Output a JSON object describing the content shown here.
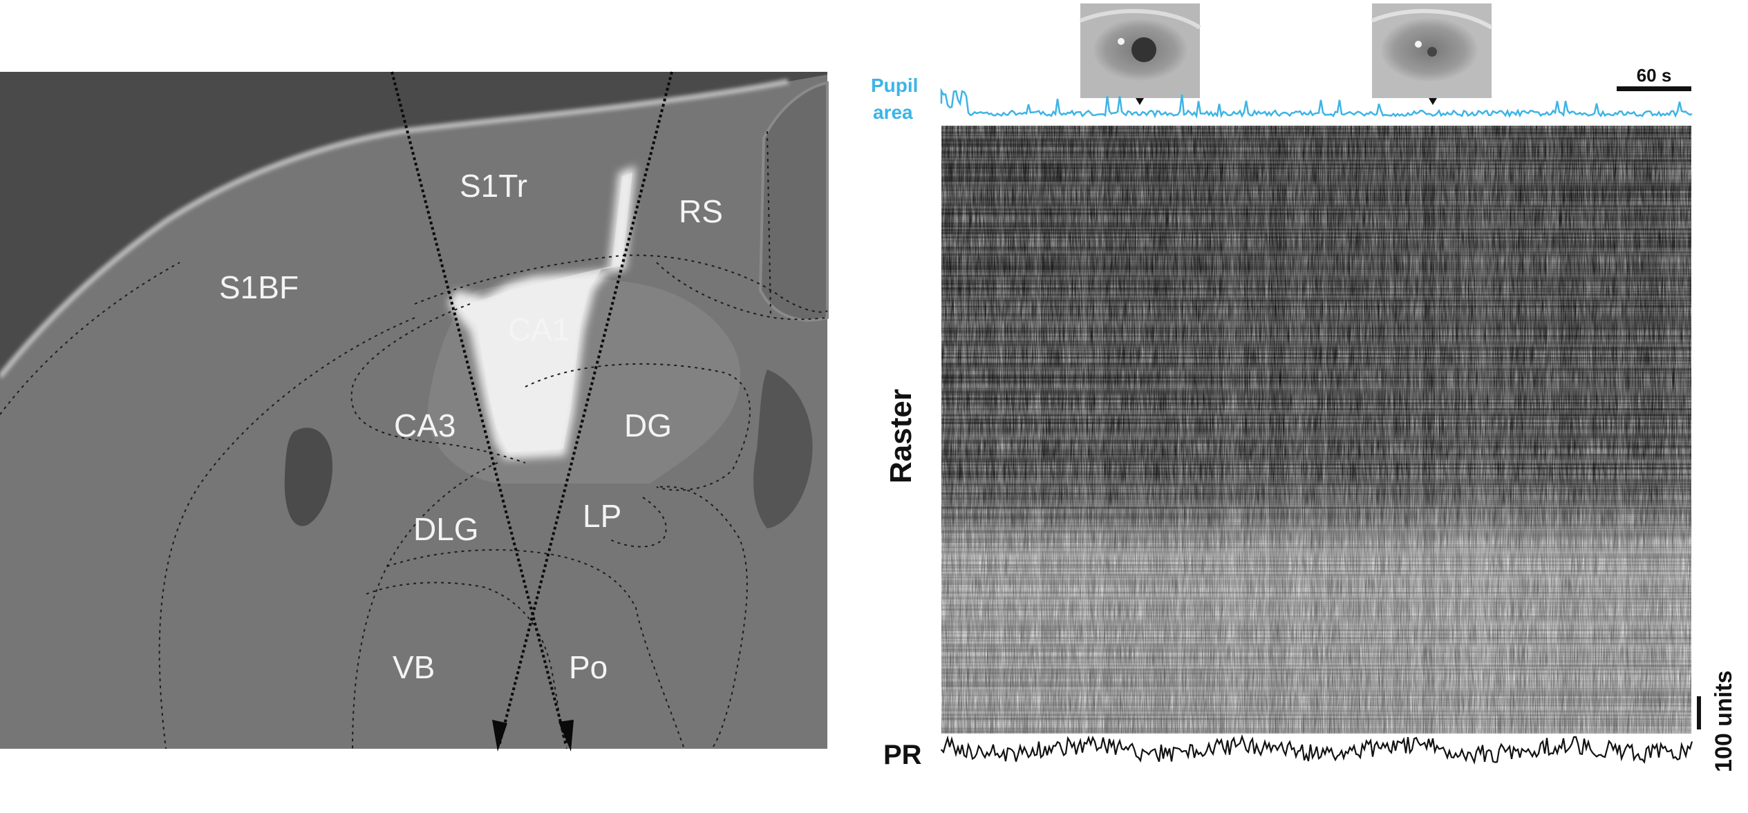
{
  "histology": {
    "regions": [
      "S1Tr",
      "RS",
      "S1BF",
      "CA1",
      "CA3",
      "DG",
      "DLG",
      "LP",
      "VB",
      "Po"
    ]
  },
  "recording": {
    "pupil_label_line1": "Pupil",
    "pupil_label_line2": "area",
    "raster_label": "Raster",
    "pr_label": "PR",
    "time_scale_label": "60 s",
    "unit_scale_label": "100 units",
    "pupil_color": "#3cb4e6"
  }
}
